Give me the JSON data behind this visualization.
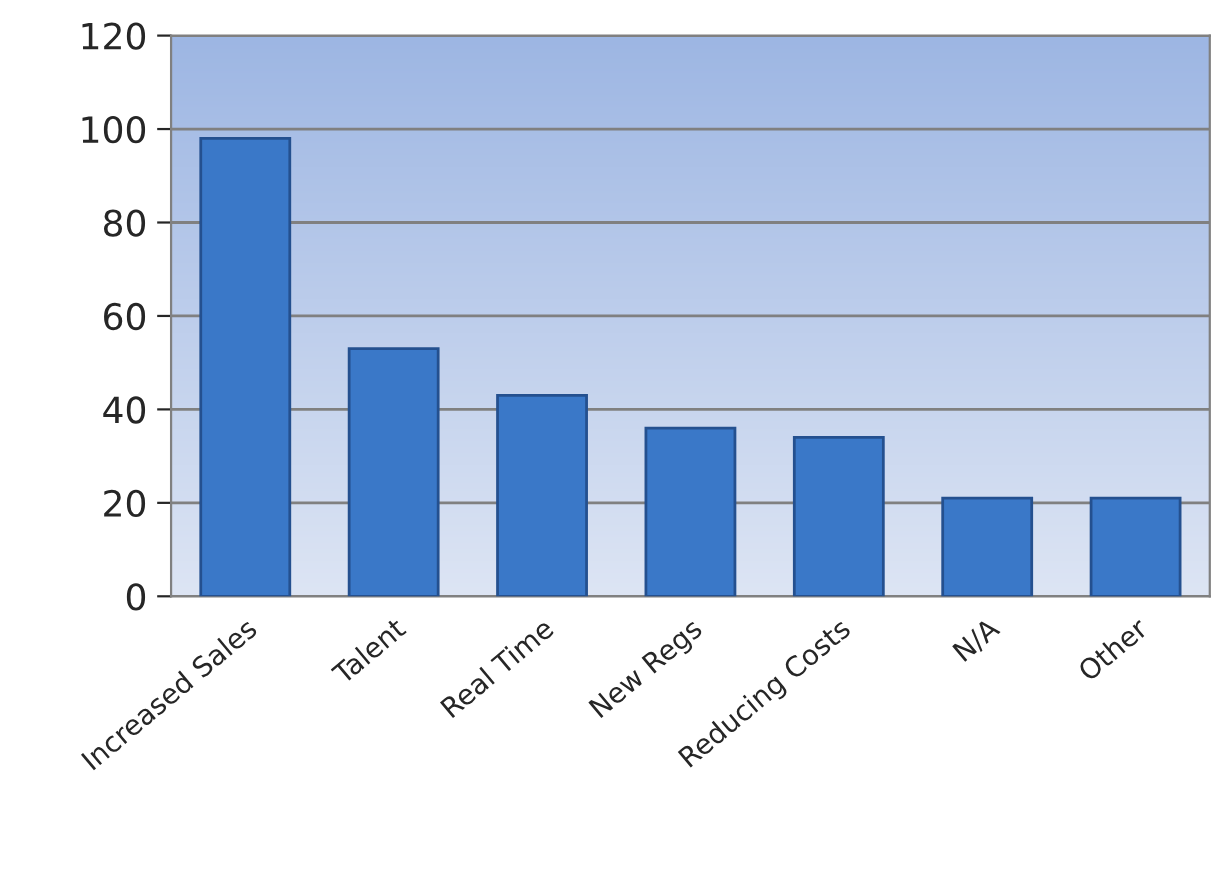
{
  "chart_data": {
    "type": "bar",
    "categories": [
      "Increased Sales",
      "Talent",
      "Real Time",
      "New Regs",
      "Reducing Costs",
      "N/A",
      "Other"
    ],
    "values": [
      98,
      53,
      43,
      36,
      34,
      21,
      21
    ],
    "color": "#3a78c8",
    "ylim": [
      0,
      120
    ],
    "yticks": [
      0,
      20,
      40,
      60,
      80,
      100,
      120
    ],
    "grid": "y"
  }
}
